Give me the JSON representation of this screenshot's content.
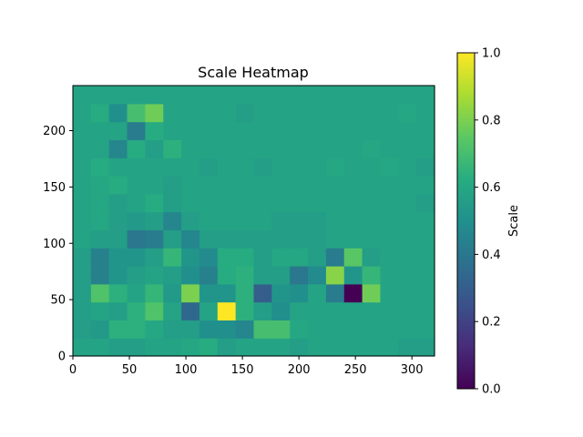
{
  "chart_data": {
    "type": "heatmap",
    "title": "Scale Heatmap",
    "xlabel": "",
    "ylabel": "",
    "xlim": [
      0,
      320
    ],
    "ylim": [
      0,
      240
    ],
    "x_ticks": [
      0,
      50,
      100,
      150,
      200,
      250,
      300
    ],
    "y_ticks": [
      0,
      50,
      100,
      150,
      200
    ],
    "cell_size": 16,
    "grid": false,
    "colormap": "viridis",
    "colorbar": {
      "label": "Scale",
      "range": [
        0,
        1
      ],
      "ticks": [
        0.0,
        0.2,
        0.4,
        0.6,
        0.8,
        1.0
      ],
      "tick_labels": [
        "0.0",
        "0.2",
        "0.4",
        "0.6",
        "0.8",
        "1.0"
      ],
      "placement": "right"
    },
    "values": [
      [
        0.58,
        0.58,
        0.56,
        0.56,
        0.58,
        0.58,
        0.6,
        0.62,
        0.56,
        0.58,
        0.58,
        0.58,
        0.56,
        0.58,
        0.58,
        0.58,
        0.58,
        0.58,
        0.56,
        0.56
      ],
      [
        0.56,
        0.54,
        0.64,
        0.64,
        0.6,
        0.56,
        0.56,
        0.5,
        0.5,
        0.46,
        0.7,
        0.7,
        0.6,
        0.58,
        0.58,
        0.58,
        0.58,
        0.58,
        0.58,
        0.58
      ],
      [
        0.56,
        0.58,
        0.56,
        0.64,
        0.72,
        0.58,
        0.34,
        0.58,
        1.0,
        0.64,
        0.56,
        0.5,
        0.58,
        0.58,
        0.58,
        0.58,
        0.58,
        0.58,
        0.58,
        0.58
      ],
      [
        0.56,
        0.72,
        0.64,
        0.58,
        0.66,
        0.54,
        0.8,
        0.52,
        0.52,
        0.64,
        0.3,
        0.52,
        0.5,
        0.58,
        0.42,
        0.0,
        0.78,
        0.58,
        0.58,
        0.58
      ],
      [
        0.56,
        0.44,
        0.52,
        0.56,
        0.58,
        0.56,
        0.5,
        0.44,
        0.62,
        0.64,
        0.56,
        0.56,
        0.4,
        0.48,
        0.82,
        0.52,
        0.66,
        0.58,
        0.58,
        0.58
      ],
      [
        0.56,
        0.44,
        0.52,
        0.52,
        0.56,
        0.66,
        0.52,
        0.48,
        0.62,
        0.62,
        0.56,
        0.6,
        0.6,
        0.56,
        0.42,
        0.74,
        0.56,
        0.58,
        0.58,
        0.58
      ],
      [
        0.58,
        0.56,
        0.56,
        0.4,
        0.42,
        0.56,
        0.46,
        0.56,
        0.56,
        0.56,
        0.56,
        0.56,
        0.56,
        0.56,
        0.58,
        0.58,
        0.58,
        0.58,
        0.58,
        0.58
      ],
      [
        0.58,
        0.6,
        0.56,
        0.54,
        0.56,
        0.46,
        0.56,
        0.58,
        0.58,
        0.58,
        0.58,
        0.56,
        0.56,
        0.56,
        0.58,
        0.58,
        0.58,
        0.58,
        0.58,
        0.58
      ],
      [
        0.58,
        0.6,
        0.56,
        0.58,
        0.62,
        0.56,
        0.58,
        0.58,
        0.58,
        0.58,
        0.58,
        0.58,
        0.58,
        0.58,
        0.58,
        0.58,
        0.58,
        0.58,
        0.58,
        0.56
      ],
      [
        0.58,
        0.6,
        0.62,
        0.58,
        0.58,
        0.56,
        0.58,
        0.58,
        0.58,
        0.58,
        0.58,
        0.58,
        0.58,
        0.58,
        0.58,
        0.58,
        0.58,
        0.58,
        0.58,
        0.58
      ],
      [
        0.58,
        0.62,
        0.58,
        0.58,
        0.58,
        0.58,
        0.58,
        0.56,
        0.58,
        0.58,
        0.56,
        0.58,
        0.58,
        0.58,
        0.6,
        0.58,
        0.58,
        0.6,
        0.58,
        0.56
      ],
      [
        0.58,
        0.58,
        0.46,
        0.62,
        0.56,
        0.64,
        0.58,
        0.58,
        0.58,
        0.58,
        0.58,
        0.58,
        0.58,
        0.58,
        0.58,
        0.58,
        0.6,
        0.58,
        0.58,
        0.58
      ],
      [
        0.58,
        0.58,
        0.58,
        0.42,
        0.62,
        0.58,
        0.58,
        0.58,
        0.58,
        0.58,
        0.58,
        0.58,
        0.58,
        0.58,
        0.58,
        0.58,
        0.58,
        0.58,
        0.58,
        0.58
      ],
      [
        0.58,
        0.62,
        0.5,
        0.7,
        0.78,
        0.58,
        0.58,
        0.58,
        0.58,
        0.56,
        0.58,
        0.58,
        0.58,
        0.58,
        0.58,
        0.58,
        0.58,
        0.58,
        0.6,
        0.58
      ],
      [
        0.58,
        0.58,
        0.58,
        0.58,
        0.58,
        0.58,
        0.58,
        0.58,
        0.58,
        0.58,
        0.58,
        0.58,
        0.58,
        0.58,
        0.58,
        0.58,
        0.58,
        0.58,
        0.58,
        0.58
      ]
    ]
  }
}
